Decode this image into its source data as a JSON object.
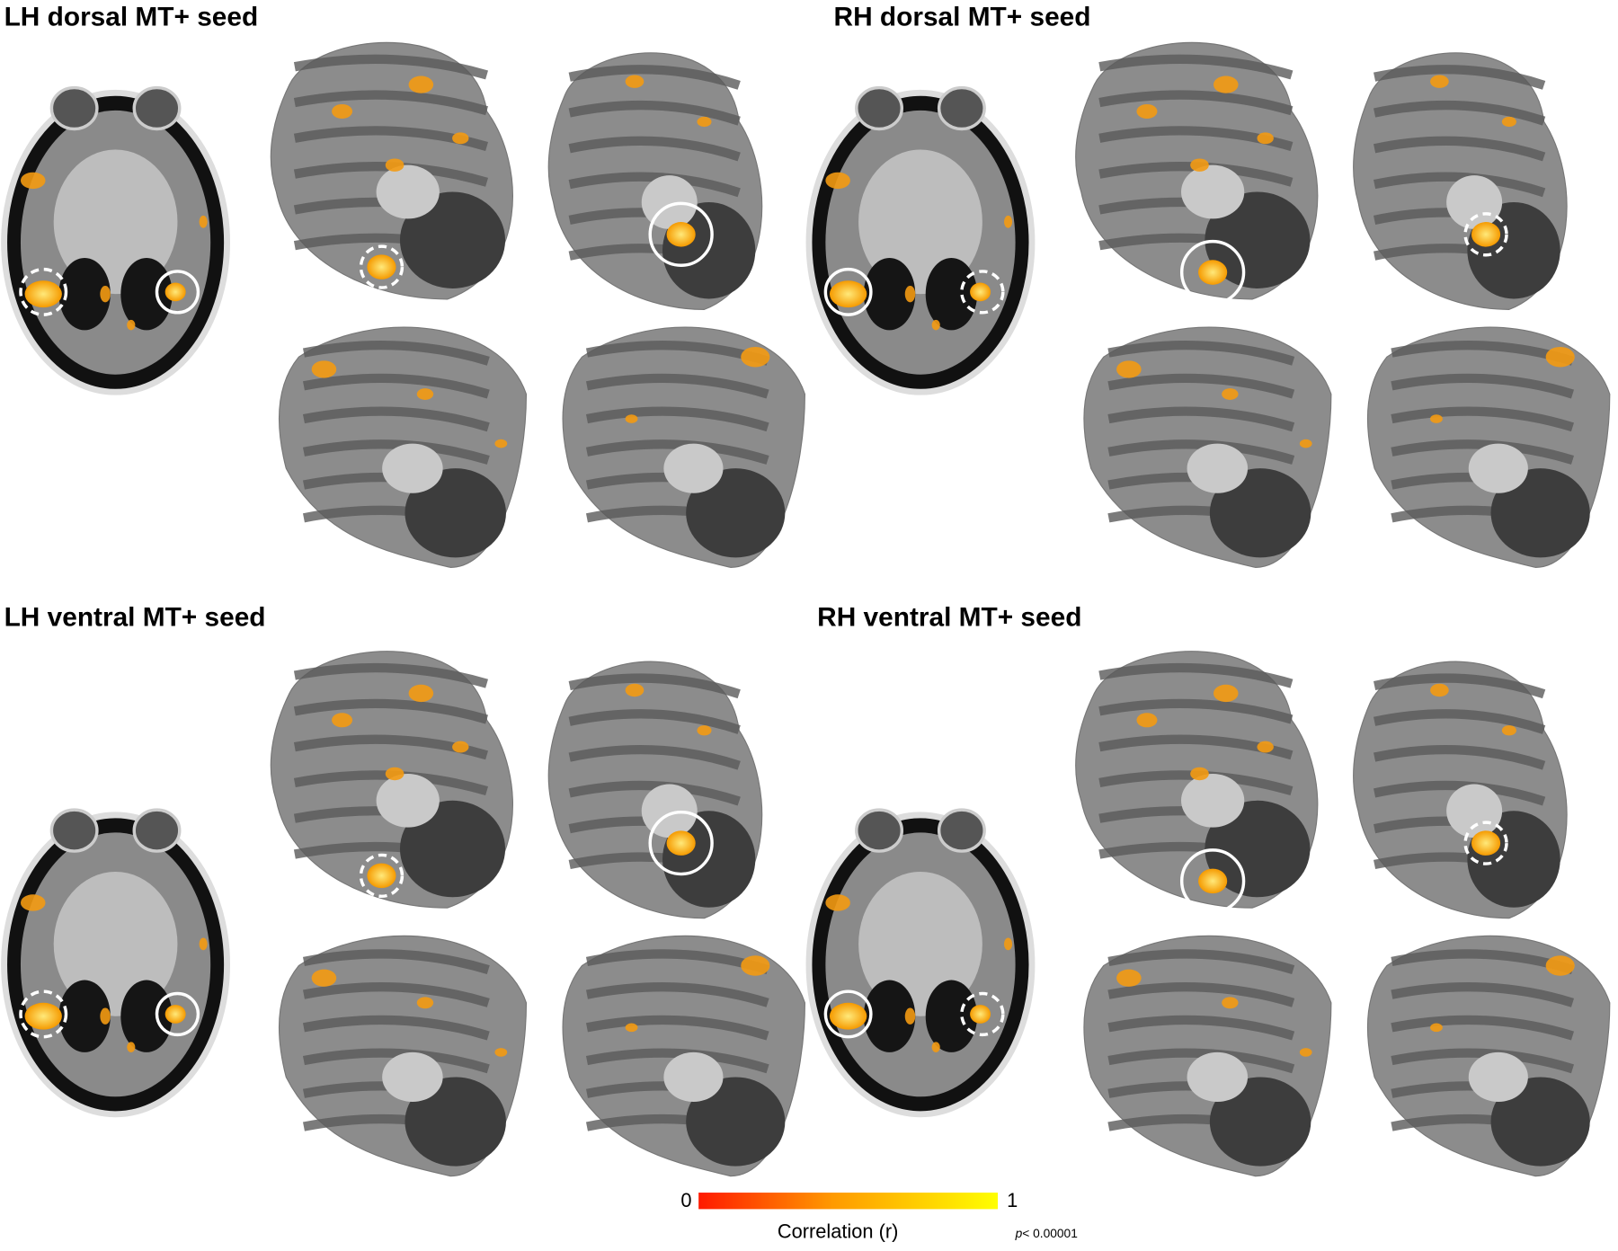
{
  "panels": [
    {
      "title": "LH dorsal MT+ seed"
    },
    {
      "title": "RH dorsal MT+ seed"
    },
    {
      "title": "LH ventral MT+ seed"
    },
    {
      "title": "RH ventral MT+ seed"
    }
  ],
  "colorbar": {
    "ticks": [
      0,
      1
    ],
    "label": "Correlation (r)",
    "threshold": {
      "symbol": "p",
      "text": "< 0.00001"
    }
  }
}
